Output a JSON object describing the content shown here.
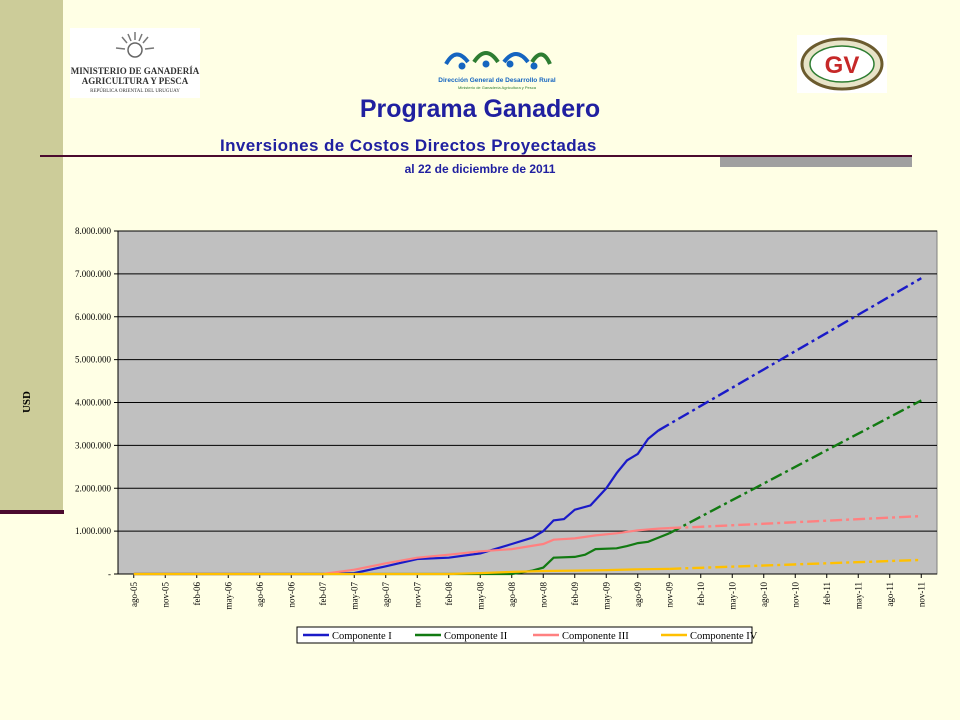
{
  "logos": {
    "left": {
      "lines": [
        "MINISTERIO DE GANADERÍA",
        "AGRICULTURA Y PESCA",
        "REPÚBLICA ORIENTAL DEL URUGUAY"
      ]
    },
    "middle": {
      "lines": [
        "Dirección General de Desarrollo Rural",
        "Ministerio de Ganadería Agricultura y Pesca"
      ]
    },
    "right": {
      "lines": [
        "GV"
      ]
    }
  },
  "header": {
    "title": "Programa Ganadero",
    "subtitle": "Inversiones de Costos Directos Proyectadas",
    "date_line": "al 22 de diciembre de 2011"
  },
  "colors": {
    "plot_bg": "#C0C0C0",
    "comp1": "#1A1AC8",
    "comp2": "#127A12",
    "comp3": "#FF8080",
    "comp4": "#FFC000"
  },
  "chart_data": {
    "type": "line",
    "title": "",
    "xlabel": "",
    "ylabel": "USD",
    "ylim": [
      0,
      8000000
    ],
    "y_ticks": [
      "-",
      "1.000.000",
      "2.000.000",
      "3.000.000",
      "4.000.000",
      "5.000.000",
      "6.000.000",
      "7.000.000",
      "8.000.000"
    ],
    "y_tick_values": [
      0,
      1000000,
      2000000,
      3000000,
      4000000,
      5000000,
      6000000,
      7000000,
      8000000
    ],
    "x_ticks": [
      "ago-05",
      "nov-05",
      "feb-06",
      "may-06",
      "ago-06",
      "nov-06",
      "feb-07",
      "may-07",
      "ago-07",
      "nov-07",
      "feb-08",
      "may-08",
      "ago-08",
      "nov-08",
      "feb-09",
      "may-09",
      "ago-09",
      "nov-09",
      "feb-10",
      "may-10",
      "ago-10",
      "nov-10",
      "feb-11",
      "may-11",
      "ago-11",
      "nov-11"
    ],
    "grid": true,
    "legend_position": "bottom",
    "series": [
      {
        "name": "Componente I",
        "colorKey": "comp1",
        "actual": [
          [
            0,
            0
          ],
          [
            6,
            0
          ],
          [
            7,
            20000
          ],
          [
            8,
            180000
          ],
          [
            9,
            350000
          ],
          [
            10,
            380000
          ],
          [
            11,
            480000
          ],
          [
            12,
            700000
          ],
          [
            12.66,
            850000
          ],
          [
            13,
            1000000
          ],
          [
            13.33,
            1250000
          ],
          [
            13.66,
            1280000
          ],
          [
            14,
            1500000
          ],
          [
            14.5,
            1600000
          ],
          [
            15,
            2000000
          ],
          [
            15.33,
            2350000
          ],
          [
            15.66,
            2650000
          ],
          [
            16,
            2800000
          ],
          [
            16.33,
            3150000
          ],
          [
            16.66,
            3350000
          ]
        ],
        "projected": [
          [
            16.66,
            3350000
          ],
          [
            25,
            6900000
          ]
        ]
      },
      {
        "name": "Componente II",
        "colorKey": "comp2",
        "actual": [
          [
            0,
            0
          ],
          [
            12,
            0
          ],
          [
            12.66,
            80000
          ],
          [
            13,
            150000
          ],
          [
            13.33,
            380000
          ],
          [
            14,
            400000
          ],
          [
            14.33,
            450000
          ],
          [
            14.66,
            580000
          ],
          [
            15.33,
            600000
          ],
          [
            15.66,
            650000
          ],
          [
            16,
            720000
          ],
          [
            16.33,
            750000
          ],
          [
            16.66,
            850000
          ],
          [
            17,
            950000
          ]
        ],
        "projected": [
          [
            17,
            950000
          ],
          [
            25,
            4050000
          ]
        ]
      },
      {
        "name": "Componente III",
        "colorKey": "comp3",
        "actual": [
          [
            0,
            0
          ],
          [
            6,
            0
          ],
          [
            7,
            100000
          ],
          [
            8,
            250000
          ],
          [
            9,
            380000
          ],
          [
            10,
            450000
          ],
          [
            11,
            530000
          ],
          [
            12,
            580000
          ],
          [
            13,
            700000
          ],
          [
            13.33,
            800000
          ],
          [
            14,
            830000
          ],
          [
            14.66,
            900000
          ],
          [
            15.33,
            950000
          ],
          [
            16,
            1020000
          ],
          [
            16.66,
            1060000
          ],
          [
            17,
            1070000
          ]
        ],
        "projected": [
          [
            17,
            1070000
          ],
          [
            18,
            1100000
          ],
          [
            25,
            1350000
          ]
        ]
      },
      {
        "name": "Componente IV",
        "colorKey": "comp4",
        "actual": [
          [
            0,
            0
          ],
          [
            10,
            0
          ],
          [
            11,
            20000
          ],
          [
            12,
            50000
          ],
          [
            13,
            70000
          ],
          [
            14,
            80000
          ],
          [
            15,
            90000
          ],
          [
            16,
            110000
          ],
          [
            17,
            120000
          ]
        ],
        "projected": [
          [
            17,
            120000
          ],
          [
            25,
            330000
          ]
        ]
      }
    ]
  }
}
